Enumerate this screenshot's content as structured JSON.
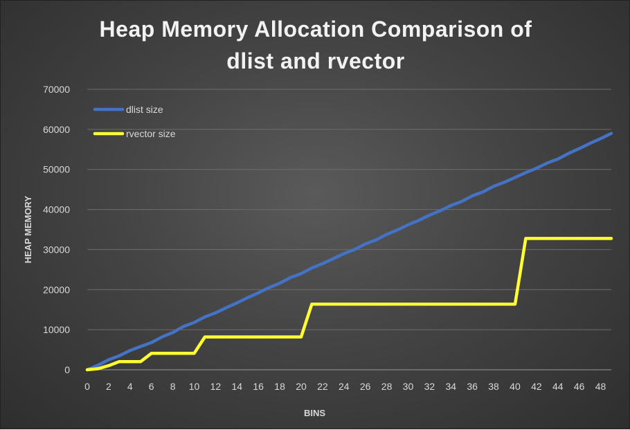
{
  "chart_data": {
    "type": "line",
    "title_line1": "Heap Memory Allocation Comparison of",
    "title_line2": "dlist and rvector",
    "xlabel": "BINS",
    "ylabel": "HEAP MEMORY",
    "xlim": [
      0,
      49
    ],
    "ylim": [
      0,
      70000
    ],
    "yticks": [
      0,
      10000,
      20000,
      30000,
      40000,
      50000,
      60000,
      70000
    ],
    "xticks": [
      0,
      2,
      4,
      6,
      8,
      10,
      12,
      14,
      16,
      18,
      20,
      22,
      24,
      26,
      28,
      30,
      32,
      34,
      36,
      38,
      40,
      42,
      44,
      46,
      48
    ],
    "grid": true,
    "legend_position": "top-left",
    "x": [
      0,
      1,
      2,
      3,
      4,
      5,
      6,
      7,
      8,
      9,
      10,
      11,
      12,
      13,
      14,
      15,
      16,
      17,
      18,
      19,
      20,
      21,
      22,
      23,
      24,
      25,
      26,
      27,
      28,
      29,
      30,
      31,
      32,
      33,
      34,
      35,
      36,
      37,
      38,
      39,
      40,
      41,
      42,
      43,
      44,
      45,
      46,
      47,
      48,
      49
    ],
    "series": [
      {
        "name": "dlist size",
        "color": "#4472c4",
        "values": [
          0,
          1100,
          2500,
          3500,
          4800,
          5800,
          6800,
          8200,
          9300,
          10800,
          11800,
          13200,
          14200,
          15500,
          16700,
          18000,
          19200,
          20500,
          21600,
          23000,
          24000,
          25400,
          26500,
          27700,
          29000,
          30000,
          31400,
          32400,
          33800,
          34900,
          36200,
          37300,
          38600,
          39700,
          41000,
          42000,
          43400,
          44400,
          45800,
          46800,
          48000,
          49200,
          50300,
          51600,
          52600,
          54000,
          55200,
          56500,
          57700,
          59000
        ]
      },
      {
        "name": "rvector size",
        "color": "#ffff33",
        "values": [
          0,
          256,
          1024,
          2048,
          2048,
          2048,
          4096,
          4096,
          4096,
          4096,
          4096,
          8192,
          8192,
          8192,
          8192,
          8192,
          8192,
          8192,
          8192,
          8192,
          8192,
          16384,
          16384,
          16384,
          16384,
          16384,
          16384,
          16384,
          16384,
          16384,
          16384,
          16384,
          16384,
          16384,
          16384,
          16384,
          16384,
          16384,
          16384,
          16384,
          16384,
          32768,
          32768,
          32768,
          32768,
          32768,
          32768,
          32768,
          32768,
          32768
        ]
      }
    ]
  }
}
